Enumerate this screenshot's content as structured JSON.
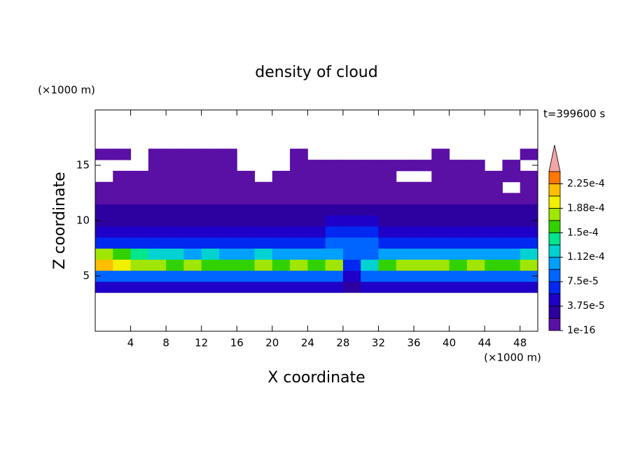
{
  "chart_data": {
    "type": "contour",
    "title": "density of cloud",
    "x_label": "X coordinate",
    "y_label": "Z coordinate",
    "x_unit": "(×1000 m)",
    "y_unit": "(×1000 m)",
    "annotation": "t=399600 s",
    "xlim": [
      0,
      50
    ],
    "ylim": [
      0,
      20
    ],
    "xticks": [
      4,
      8,
      12,
      16,
      20,
      24,
      28,
      32,
      36,
      40,
      44,
      48
    ],
    "yticks": [
      5,
      10,
      15
    ],
    "x": [
      1,
      3,
      5,
      7,
      9,
      11,
      13,
      15,
      17,
      19,
      21,
      23,
      25,
      27,
      29,
      31,
      33,
      35,
      37,
      39,
      41,
      43,
      45,
      47,
      49
    ],
    "y": [
      4,
      5,
      6,
      7,
      8,
      9,
      10,
      11,
      12,
      13,
      14,
      15,
      16
    ],
    "z": [
      [
        5e-05,
        5e-05,
        5e-05,
        5e-05,
        5e-05,
        5e-05,
        5e-05,
        5e-05,
        5e-05,
        5e-05,
        5e-05,
        5e-05,
        5e-05,
        5e-05,
        2.5e-05,
        5e-05,
        5e-05,
        5e-05,
        5e-05,
        5e-05,
        5e-05,
        5e-05,
        5e-05,
        5e-05,
        5e-05
      ],
      [
        9e-05,
        9e-05,
        9e-05,
        9e-05,
        9e-05,
        9e-05,
        9e-05,
        9e-05,
        9e-05,
        9e-05,
        9e-05,
        9e-05,
        9e-05,
        9e-05,
        4e-05,
        9e-05,
        9e-05,
        9e-05,
        9e-05,
        9e-05,
        9e-05,
        9e-05,
        9e-05,
        9e-05,
        9e-05
      ],
      [
        0.00021,
        0.00019,
        0.00017,
        0.00017,
        0.00016,
        0.00017,
        0.00016,
        0.00015,
        0.00016,
        0.00017,
        0.00016,
        0.00017,
        0.00016,
        0.00017,
        6e-05,
        0.00013,
        0.00016,
        0.00017,
        0.00018,
        0.00017,
        0.00016,
        0.00017,
        0.00016,
        0.00015,
        0.00018
      ],
      [
        0.00018,
        0.00016,
        0.00014,
        0.00013,
        0.00012,
        0.00011,
        0.00012,
        0.0001,
        0.00011,
        0.00012,
        0.00011,
        0.0001,
        0.0001,
        0.00011,
        9e-05,
        8e-05,
        0.0001,
        0.00011,
        0.00011,
        0.0001,
        0.00011,
        0.0001,
        0.0001,
        0.00011,
        0.00012
      ],
      [
        6e-05,
        6e-05,
        6e-05,
        6e-05,
        6e-05,
        6e-05,
        6e-05,
        6e-05,
        6e-05,
        6e-05,
        6e-05,
        6e-05,
        6e-05,
        9e-05,
        9e-05,
        9e-05,
        6e-05,
        6e-05,
        6e-05,
        6e-05,
        6e-05,
        6e-05,
        6e-05,
        6e-05,
        6e-05
      ],
      [
        4e-05,
        4e-05,
        4e-05,
        4e-05,
        4e-05,
        4e-05,
        4e-05,
        4e-05,
        4e-05,
        4e-05,
        4e-05,
        4e-05,
        4e-05,
        6e-05,
        6e-05,
        6e-05,
        4e-05,
        4e-05,
        4e-05,
        4e-05,
        4e-05,
        4e-05,
        4e-05,
        4e-05,
        4e-05
      ],
      [
        3e-05,
        3e-05,
        3e-05,
        3e-05,
        3e-05,
        3e-05,
        3e-05,
        3e-05,
        3e-05,
        3e-05,
        3e-05,
        3e-05,
        3e-05,
        4e-05,
        4e-05,
        4e-05,
        3e-05,
        3e-05,
        3e-05,
        3e-05,
        3e-05,
        3e-05,
        3e-05,
        3e-05,
        3e-05
      ],
      [
        2e-05,
        2e-05,
        2e-05,
        2e-05,
        2e-05,
        2e-05,
        2e-05,
        2e-05,
        2e-05,
        2e-05,
        2e-05,
        2e-05,
        2e-05,
        2e-05,
        2e-05,
        2e-05,
        2e-05,
        2e-05,
        2e-05,
        2e-05,
        2e-05,
        2e-05,
        2e-05,
        2e-05,
        2e-05
      ],
      [
        1e-05,
        1e-05,
        1e-05,
        1e-05,
        1e-05,
        1e-05,
        1e-05,
        1e-05,
        1e-05,
        1e-05,
        1e-05,
        1e-05,
        1e-05,
        1e-05,
        1e-05,
        1e-05,
        1e-05,
        1e-05,
        1e-05,
        1e-05,
        1e-05,
        1e-05,
        1e-05,
        1e-05,
        1e-05
      ],
      [
        5e-06,
        5e-06,
        5e-06,
        5e-06,
        5e-06,
        5e-06,
        5e-06,
        5e-06,
        5e-06,
        5e-06,
        5e-06,
        5e-06,
        5e-06,
        5e-06,
        5e-06,
        5e-06,
        5e-06,
        5e-06,
        5e-06,
        5e-06,
        5e-06,
        5e-06,
        5e-06,
        null,
        5e-06
      ],
      [
        null,
        5e-06,
        5e-06,
        5e-06,
        5e-06,
        5e-06,
        5e-06,
        5e-06,
        5e-06,
        null,
        5e-06,
        5e-06,
        5e-06,
        5e-06,
        5e-06,
        5e-06,
        5e-06,
        null,
        null,
        5e-06,
        5e-06,
        5e-06,
        5e-06,
        5e-06,
        5e-06
      ],
      [
        null,
        null,
        null,
        5e-06,
        5e-06,
        5e-06,
        5e-06,
        5e-06,
        null,
        null,
        null,
        5e-06,
        5e-06,
        5e-06,
        5e-06,
        5e-06,
        5e-06,
        5e-06,
        5e-06,
        5e-06,
        5e-06,
        5e-06,
        null,
        5e-06,
        null
      ],
      [
        5e-06,
        5e-06,
        null,
        5e-06,
        5e-06,
        5e-06,
        5e-06,
        5e-06,
        null,
        null,
        null,
        5e-06,
        null,
        null,
        null,
        null,
        null,
        null,
        null,
        5e-06,
        null,
        null,
        null,
        null,
        5e-06
      ]
    ],
    "levels": [
      1e-16,
      1.875e-05,
      3.75e-05,
      5.625e-05,
      7.5e-05,
      9.375e-05,
      0.0001125,
      0.00013125,
      0.00015,
      0.00016875,
      0.0001875,
      0.00020625,
      0.000225,
      0.00024375
    ],
    "colors": [
      "#5a0fa5",
      "#2d00a0",
      "#1e00c8",
      "#0028f0",
      "#0064ff",
      "#00a0ff",
      "#00d2d2",
      "#00e68c",
      "#32d200",
      "#a0e600",
      "#f0f000",
      "#ffbe00",
      "#ff7800"
    ],
    "extend_color": "#f4a4a4",
    "cbar_ticks": [
      {
        "value": 1e-16,
        "label": "1e-16"
      },
      {
        "value": 3.75e-05,
        "label": "3.75e-5"
      },
      {
        "value": 7.5e-05,
        "label": "7.5e-5"
      },
      {
        "value": 0.0001125,
        "label": "1.12e-4"
      },
      {
        "value": 0.00015,
        "label": "1.5e-4"
      },
      {
        "value": 0.0001875,
        "label": "1.88e-4"
      },
      {
        "value": 0.000225,
        "label": "2.25e-4"
      }
    ]
  }
}
